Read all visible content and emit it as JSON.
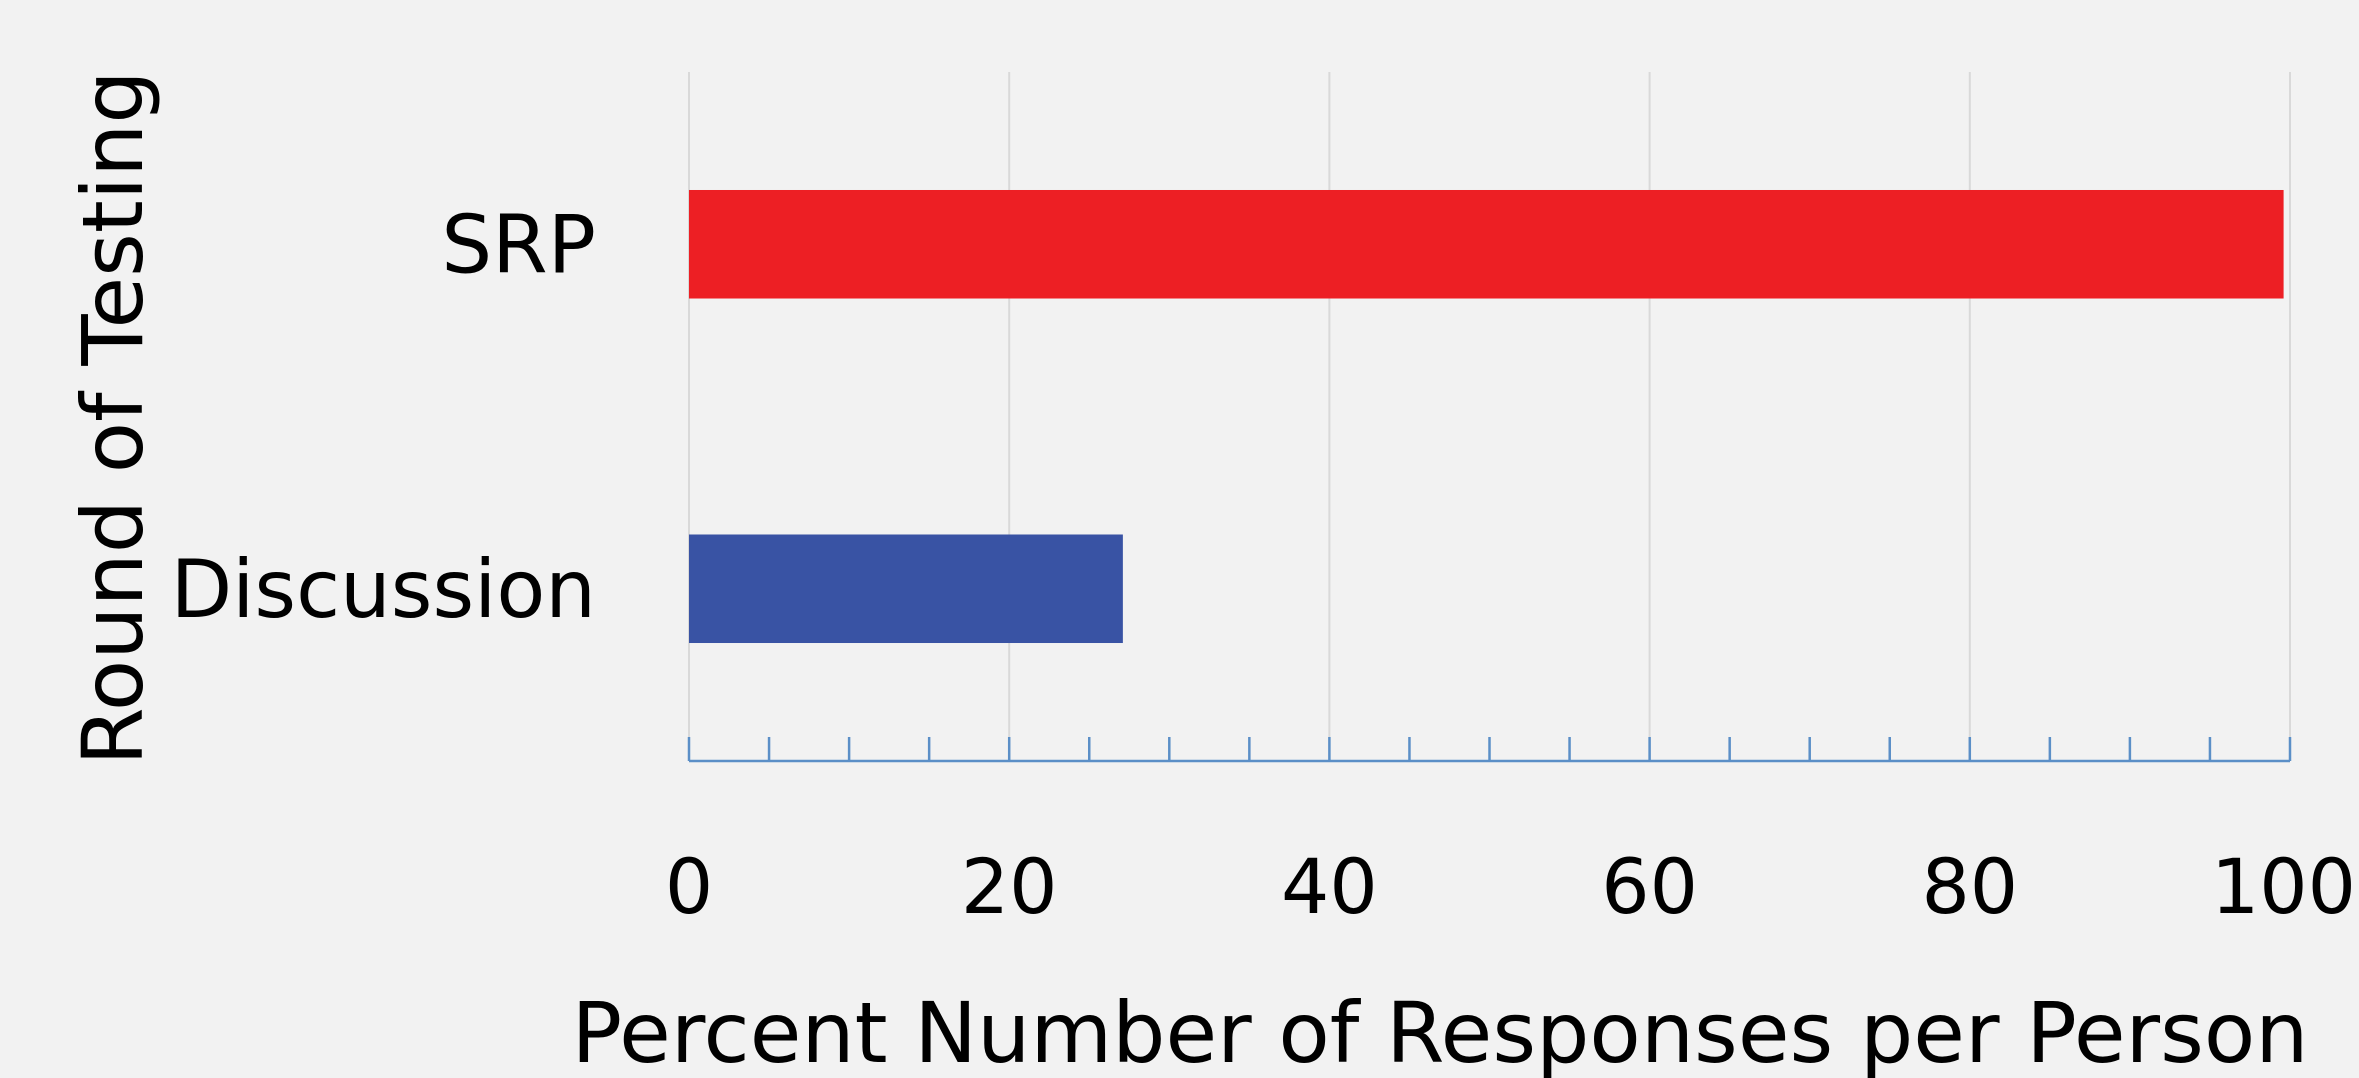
{
  "chart_data": {
    "type": "bar",
    "orientation": "horizontal",
    "categories": [
      "SRP",
      "Discussion"
    ],
    "series": [
      {
        "values": [
          99.6,
          27.1
        ],
        "colors": [
          "#ed1f24",
          "#3953a4"
        ]
      }
    ],
    "xlabel": "Percent Number of Responses per Person",
    "ylabel": "Round of Testing",
    "xlim": [
      0,
      100
    ],
    "xticks": [
      0,
      20,
      40,
      60,
      80,
      100
    ],
    "minor_tick_step": 5,
    "grid": true,
    "legend": "none"
  },
  "colors": {
    "background": "#f2f2f2",
    "gridline": "#d9d9d9",
    "axis": "#5b8fc7"
  }
}
